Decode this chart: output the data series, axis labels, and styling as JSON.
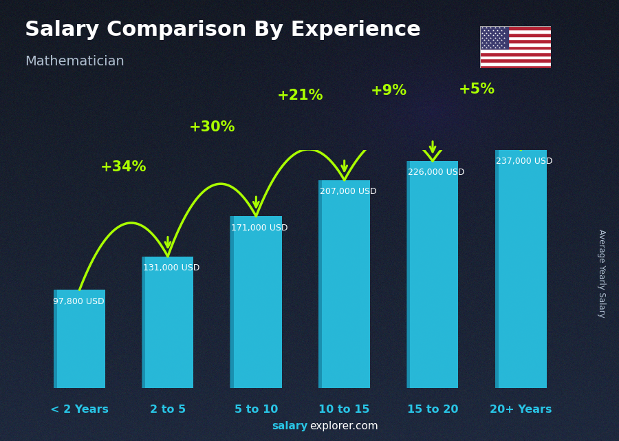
{
  "categories": [
    "< 2 Years",
    "2 to 5",
    "5 to 10",
    "10 to 15",
    "15 to 20",
    "20+ Years"
  ],
  "values": [
    97800,
    131000,
    171000,
    207000,
    226000,
    237000
  ],
  "value_labels": [
    "97,800 USD",
    "131,000 USD",
    "171,000 USD",
    "207,000 USD",
    "226,000 USD",
    "237,000 USD"
  ],
  "pct_changes": [
    "+34%",
    "+30%",
    "+21%",
    "+9%",
    "+5%"
  ],
  "bar_color": "#29c5e6",
  "bar_edge_color": "#1a8fb5",
  "bg_color_top": "#1a2a3a",
  "bg_color_bottom": "#101820",
  "title": "Salary Comparison By Experience",
  "subtitle": "Mathematician",
  "ylabel": "Average Yearly Salary",
  "title_color": "#ffffff",
  "subtitle_color": "#b0bfd0",
  "label_color": "#ffffff",
  "pct_color": "#aaff00",
  "ylabel_color": "#b0bfd0",
  "xtick_color": "#29c5e6",
  "footer_color_salary": "#29c5e6",
  "footer_color_explorer": "#ffffff",
  "arc_lift": [
    0.3,
    0.3,
    0.28,
    0.22,
    0.18
  ]
}
